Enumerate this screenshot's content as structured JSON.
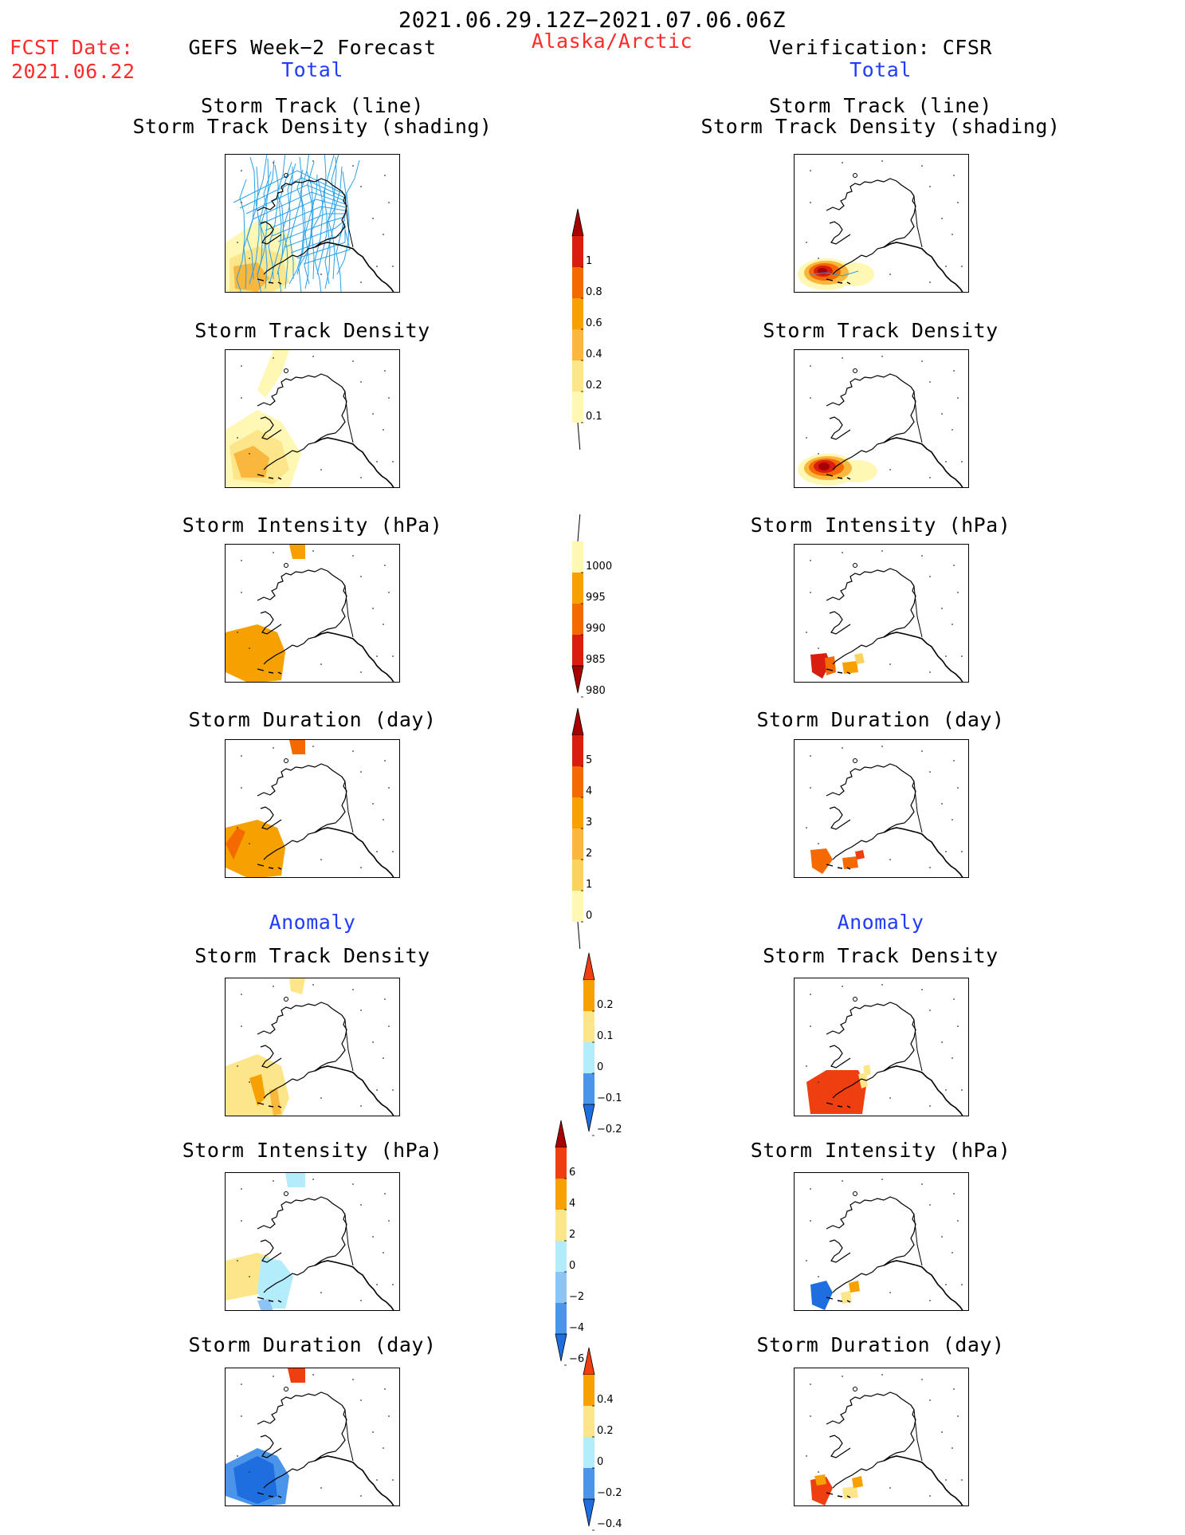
{
  "header": {
    "period": "2021.06.29.12Z−2021.07.06.06Z",
    "region": "Alaska/Arctic",
    "fcst_label": "FCST Date:",
    "fcst_date": "2021.06.22",
    "left_title": "GEFS Week−2 Forecast",
    "right_title": "Verification: CFSR",
    "total_label": "Total",
    "anomaly_label": "Anomaly"
  },
  "panel_titles": {
    "track_line": "Storm Track (line)",
    "track_shading": "Storm Track Density (shading)",
    "density": "Storm Track Density",
    "intensity": "Storm Intensity (hPa)",
    "duration": "Storm Duration (day)"
  },
  "colors": {
    "pale_yellow": "#fff7b4",
    "light_yellow": "#fde68a",
    "yellow": "#fbd25e",
    "light_orange": "#f9b73d",
    "orange": "#f7a100",
    "dark_orange": "#f56a00",
    "red_orange": "#ef3f10",
    "red": "#d91e0f",
    "dark_red": "#a80000",
    "track_blue": "#28a0e8",
    "light_cyan": "#b3ecfb",
    "light_blue": "#8cc4f6",
    "mid_blue": "#4a94ea",
    "blue": "#1f6ee0"
  },
  "chart_data": [
    {
      "type": "heatmap",
      "panel": "forecast-total-track",
      "title": "Storm Track (line) Storm Track Density (shading)"
    },
    {
      "type": "heatmap",
      "panel": "verification-total-track",
      "title": "Storm Track (line) Storm Track Density (shading)"
    },
    {
      "type": "heatmap",
      "panel": "forecast-total-density",
      "title": "Storm Track Density"
    },
    {
      "type": "heatmap",
      "panel": "verification-total-density",
      "title": "Storm Track Density"
    },
    {
      "type": "heatmap",
      "panel": "forecast-total-intensity",
      "title": "Storm Intensity (hPa)"
    },
    {
      "type": "heatmap",
      "panel": "verification-total-intensity",
      "title": "Storm Intensity (hPa)"
    },
    {
      "type": "heatmap",
      "panel": "forecast-total-duration",
      "title": "Storm Duration (day)"
    },
    {
      "type": "heatmap",
      "panel": "verification-total-duration",
      "title": "Storm Duration (day)"
    },
    {
      "type": "heatmap",
      "panel": "forecast-anomaly-density",
      "title": "Storm Track Density"
    },
    {
      "type": "heatmap",
      "panel": "verification-anomaly-density",
      "title": "Storm Track Density"
    },
    {
      "type": "heatmap",
      "panel": "forecast-anomaly-intensity",
      "title": "Storm Intensity (hPa)"
    },
    {
      "type": "heatmap",
      "panel": "verification-anomaly-intensity",
      "title": "Storm Intensity (hPa)"
    },
    {
      "type": "heatmap",
      "panel": "forecast-anomaly-duration",
      "title": "Storm Duration (day)"
    },
    {
      "type": "heatmap",
      "panel": "verification-anomaly-duration",
      "title": "Storm Duration (day)"
    }
  ],
  "colorbars": [
    {
      "name": "density-total",
      "labels": [
        "1",
        "0.8",
        "0.6",
        "0.4",
        "0.2",
        "0.1"
      ],
      "colors": [
        "#a80000",
        "#d91e0f",
        "#f56a00",
        "#f7a100",
        "#f9b73d",
        "#fde68a",
        "#fff7b4"
      ],
      "top": "triangle",
      "bottom": "line"
    },
    {
      "name": "intensity-total",
      "labels": [
        "1000",
        "995",
        "990",
        "985",
        "980"
      ],
      "colors": [
        "#fff7b4",
        "#f7a100",
        "#f56a00",
        "#d91e0f",
        "#a80000"
      ],
      "top": "line",
      "bottom": "triangle"
    },
    {
      "name": "duration-total",
      "labels": [
        "5",
        "4",
        "3",
        "2",
        "1",
        "0"
      ],
      "colors": [
        "#a80000",
        "#d91e0f",
        "#f56a00",
        "#f7a100",
        "#f9b73d",
        "#fbd25e",
        "#fff7b4"
      ],
      "top": "triangle",
      "bottom": "line"
    },
    {
      "name": "density-anomaly",
      "labels": [
        "0.2",
        "0.1",
        "0",
        "−0.1",
        "−0.2"
      ],
      "colors": [
        "#ef3f10",
        "#f7a100",
        "#fde68a",
        "#b3ecfb",
        "#4a94ea",
        "#1f6ee0"
      ],
      "top": "triangle",
      "bottom": "triangle"
    },
    {
      "name": "intensity-anomaly",
      "labels": [
        "6",
        "4",
        "2",
        "0",
        "−2",
        "−4",
        "−6"
      ],
      "colors": [
        "#a80000",
        "#ef3f10",
        "#f7a100",
        "#fde68a",
        "#b3ecfb",
        "#8cc4f6",
        "#4a94ea",
        "#1f6ee0"
      ],
      "top": "triangle",
      "bottom": "triangle"
    },
    {
      "name": "duration-anomaly",
      "labels": [
        "0.4",
        "0.2",
        "0",
        "−0.2",
        "−0.4"
      ],
      "colors": [
        "#ef3f10",
        "#f7a100",
        "#fde68a",
        "#b3ecfb",
        "#4a94ea",
        "#1f6ee0"
      ],
      "top": "triangle",
      "bottom": "triangle"
    }
  ]
}
